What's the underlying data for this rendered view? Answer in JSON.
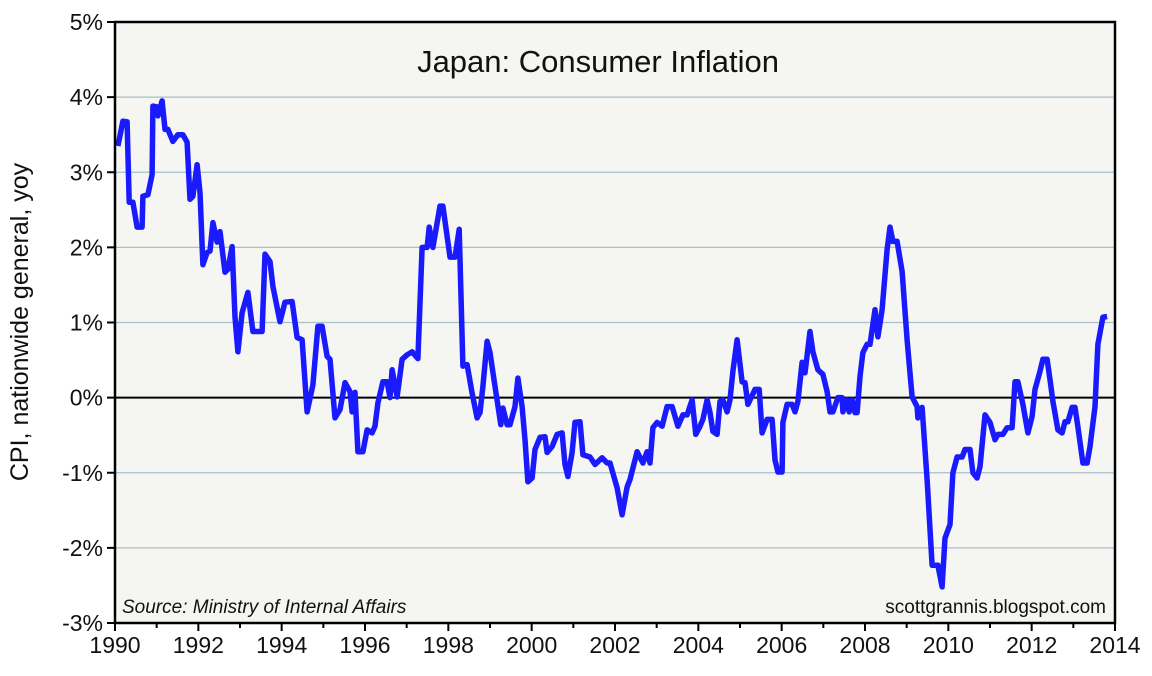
{
  "chart_data": {
    "type": "line",
    "title": "Japan: Consumer Inflation",
    "ylabel": "CPI, nationwide general, yoy",
    "xlabel": "",
    "source": "Source:  Ministry of Internal Affairs",
    "watermark": "scottgrannis.blogspot.com",
    "xlim": [
      1990,
      2014
    ],
    "ylim": [
      -3,
      5
    ],
    "x_ticks": [
      "1990",
      "1992",
      "1994",
      "1996",
      "1998",
      "2000",
      "2002",
      "2004",
      "2006",
      "2008",
      "2010",
      "2012",
      "2014"
    ],
    "y_ticks": [
      "5%",
      "4%",
      "3%",
      "2%",
      "1%",
      "0%",
      "-1%",
      "-2%",
      "-3%"
    ],
    "grid": true,
    "line_color": "#1a1aff",
    "series": [
      {
        "points": [
          [
            1990.07,
            3.35
          ],
          [
            1990.19,
            3.68
          ],
          [
            1990.29,
            3.67
          ],
          [
            1990.34,
            2.6
          ],
          [
            1990.43,
            2.6
          ],
          [
            1990.53,
            2.27
          ],
          [
            1990.65,
            2.27
          ],
          [
            1990.67,
            2.68
          ],
          [
            1990.79,
            2.7
          ],
          [
            1990.89,
            2.97
          ],
          [
            1990.91,
            3.88
          ],
          [
            1991.01,
            3.87
          ],
          [
            1991.03,
            3.75
          ],
          [
            1991.13,
            3.95
          ],
          [
            1991.2,
            3.57
          ],
          [
            1991.27,
            3.57
          ],
          [
            1991.39,
            3.41
          ],
          [
            1991.51,
            3.5
          ],
          [
            1991.63,
            3.5
          ],
          [
            1991.73,
            3.4
          ],
          [
            1991.8,
            2.64
          ],
          [
            1991.87,
            2.68
          ],
          [
            1991.97,
            3.1
          ],
          [
            1992.04,
            2.73
          ],
          [
            1992.11,
            1.77
          ],
          [
            1992.21,
            1.93
          ],
          [
            1992.28,
            1.95
          ],
          [
            1992.35,
            2.33
          ],
          [
            1992.45,
            2.07
          ],
          [
            1992.52,
            2.21
          ],
          [
            1992.64,
            1.67
          ],
          [
            1992.71,
            1.71
          ],
          [
            1992.81,
            2.01
          ],
          [
            1992.88,
            1.07
          ],
          [
            1992.95,
            0.61
          ],
          [
            1993.05,
            1.13
          ],
          [
            1993.19,
            1.4
          ],
          [
            1993.31,
            0.88
          ],
          [
            1993.53,
            0.88
          ],
          [
            1993.6,
            1.91
          ],
          [
            1993.72,
            1.81
          ],
          [
            1993.79,
            1.48
          ],
          [
            1993.96,
            1.01
          ],
          [
            1994.08,
            1.27
          ],
          [
            1994.25,
            1.28
          ],
          [
            1994.37,
            0.8
          ],
          [
            1994.49,
            0.77
          ],
          [
            1994.61,
            -0.19
          ],
          [
            1994.75,
            0.17
          ],
          [
            1994.87,
            0.95
          ],
          [
            1994.97,
            0.95
          ],
          [
            1995.09,
            0.55
          ],
          [
            1995.16,
            0.51
          ],
          [
            1995.28,
            -0.27
          ],
          [
            1995.4,
            -0.16
          ],
          [
            1995.52,
            0.2
          ],
          [
            1995.64,
            0.08
          ],
          [
            1995.69,
            -0.19
          ],
          [
            1995.76,
            0.07
          ],
          [
            1995.83,
            -0.72
          ],
          [
            1995.95,
            -0.72
          ],
          [
            1996.05,
            -0.43
          ],
          [
            1996.17,
            -0.47
          ],
          [
            1996.24,
            -0.38
          ],
          [
            1996.31,
            -0.07
          ],
          [
            1996.43,
            0.21
          ],
          [
            1996.53,
            0.21
          ],
          [
            1996.6,
            0.0
          ],
          [
            1996.65,
            0.37
          ],
          [
            1996.77,
            0.01
          ],
          [
            1996.89,
            0.51
          ],
          [
            1997.01,
            0.57
          ],
          [
            1997.13,
            0.61
          ],
          [
            1997.27,
            0.52
          ],
          [
            1997.37,
            2.0
          ],
          [
            1997.49,
            2.0
          ],
          [
            1997.54,
            2.27
          ],
          [
            1997.63,
            2.0
          ],
          [
            1997.8,
            2.55
          ],
          [
            1997.87,
            2.55
          ],
          [
            1998.04,
            1.87
          ],
          [
            1998.16,
            1.87
          ],
          [
            1998.26,
            2.24
          ],
          [
            1998.35,
            0.42
          ],
          [
            1998.45,
            0.44
          ],
          [
            1998.57,
            0.06
          ],
          [
            1998.69,
            -0.27
          ],
          [
            1998.76,
            -0.2
          ],
          [
            1998.83,
            0.15
          ],
          [
            1998.93,
            0.75
          ],
          [
            1999.0,
            0.6
          ],
          [
            1999.12,
            0.15
          ],
          [
            1999.26,
            -0.36
          ],
          [
            1999.31,
            -0.14
          ],
          [
            1999.41,
            -0.36
          ],
          [
            1999.48,
            -0.36
          ],
          [
            1999.6,
            -0.12
          ],
          [
            1999.67,
            0.26
          ],
          [
            1999.77,
            -0.12
          ],
          [
            1999.84,
            -0.56
          ],
          [
            1999.91,
            -1.12
          ],
          [
            2000.01,
            -1.07
          ],
          [
            2000.08,
            -0.69
          ],
          [
            2000.2,
            -0.53
          ],
          [
            2000.32,
            -0.52
          ],
          [
            2000.37,
            -0.73
          ],
          [
            2000.49,
            -0.65
          ],
          [
            2000.61,
            -0.49
          ],
          [
            2000.73,
            -0.47
          ],
          [
            2000.8,
            -0.89
          ],
          [
            2000.87,
            -1.05
          ],
          [
            2000.97,
            -0.73
          ],
          [
            2001.04,
            -0.33
          ],
          [
            2001.16,
            -0.32
          ],
          [
            2001.23,
            -0.76
          ],
          [
            2001.4,
            -0.79
          ],
          [
            2001.52,
            -0.89
          ],
          [
            2001.69,
            -0.8
          ],
          [
            2001.81,
            -0.87
          ],
          [
            2001.88,
            -0.87
          ],
          [
            2002.05,
            -1.2
          ],
          [
            2002.17,
            -1.56
          ],
          [
            2002.29,
            -1.19
          ],
          [
            2002.36,
            -1.09
          ],
          [
            2002.53,
            -0.72
          ],
          [
            2002.67,
            -0.87
          ],
          [
            2002.77,
            -0.72
          ],
          [
            2002.84,
            -0.87
          ],
          [
            2002.91,
            -0.4
          ],
          [
            2003.01,
            -0.33
          ],
          [
            2003.13,
            -0.38
          ],
          [
            2003.25,
            -0.12
          ],
          [
            2003.37,
            -0.12
          ],
          [
            2003.51,
            -0.38
          ],
          [
            2003.63,
            -0.23
          ],
          [
            2003.73,
            -0.23
          ],
          [
            2003.85,
            -0.03
          ],
          [
            2003.94,
            -0.49
          ],
          [
            2004.04,
            -0.38
          ],
          [
            2004.11,
            -0.29
          ],
          [
            2004.21,
            -0.03
          ],
          [
            2004.28,
            -0.2
          ],
          [
            2004.35,
            -0.45
          ],
          [
            2004.45,
            -0.49
          ],
          [
            2004.52,
            -0.05
          ],
          [
            2004.59,
            -0.03
          ],
          [
            2004.69,
            -0.19
          ],
          [
            2004.76,
            -0.03
          ],
          [
            2004.83,
            0.35
          ],
          [
            2004.93,
            0.77
          ],
          [
            2005.05,
            0.21
          ],
          [
            2005.12,
            0.2
          ],
          [
            2005.19,
            -0.09
          ],
          [
            2005.36,
            0.11
          ],
          [
            2005.46,
            0.11
          ],
          [
            2005.53,
            -0.47
          ],
          [
            2005.65,
            -0.29
          ],
          [
            2005.77,
            -0.29
          ],
          [
            2005.84,
            -0.83
          ],
          [
            2005.91,
            -0.99
          ],
          [
            2006.01,
            -0.99
          ],
          [
            2006.03,
            -0.33
          ],
          [
            2006.13,
            -0.09
          ],
          [
            2006.25,
            -0.09
          ],
          [
            2006.32,
            -0.19
          ],
          [
            2006.39,
            -0.05
          ],
          [
            2006.49,
            0.47
          ],
          [
            2006.56,
            0.33
          ],
          [
            2006.68,
            0.88
          ],
          [
            2006.75,
            0.61
          ],
          [
            2006.87,
            0.37
          ],
          [
            2006.99,
            0.31
          ],
          [
            2007.09,
            0.08
          ],
          [
            2007.16,
            -0.19
          ],
          [
            2007.23,
            -0.19
          ],
          [
            2007.35,
            0.0
          ],
          [
            2007.45,
            0.0
          ],
          [
            2007.47,
            -0.19
          ],
          [
            2007.57,
            -0.03
          ],
          [
            2007.62,
            -0.19
          ],
          [
            2007.69,
            -0.03
          ],
          [
            2007.76,
            -0.2
          ],
          [
            2007.81,
            -0.2
          ],
          [
            2007.88,
            0.28
          ],
          [
            2007.95,
            0.6
          ],
          [
            2008.05,
            0.71
          ],
          [
            2008.12,
            0.71
          ],
          [
            2008.24,
            1.17
          ],
          [
            2008.31,
            0.81
          ],
          [
            2008.41,
            1.17
          ],
          [
            2008.53,
            1.97
          ],
          [
            2008.6,
            2.27
          ],
          [
            2008.67,
            2.08
          ],
          [
            2008.77,
            2.08
          ],
          [
            2008.89,
            1.68
          ],
          [
            2009.01,
            0.77
          ],
          [
            2009.13,
            0.01
          ],
          [
            2009.25,
            -0.12
          ],
          [
            2009.27,
            -0.27
          ],
          [
            2009.37,
            -0.13
          ],
          [
            2009.49,
            -1.09
          ],
          [
            2009.61,
            -2.23
          ],
          [
            2009.75,
            -2.23
          ],
          [
            2009.85,
            -2.52
          ],
          [
            2009.92,
            -1.87
          ],
          [
            2010.04,
            -1.69
          ],
          [
            2010.11,
            -1.0
          ],
          [
            2010.21,
            -0.79
          ],
          [
            2010.33,
            -0.79
          ],
          [
            2010.4,
            -0.69
          ],
          [
            2010.52,
            -0.69
          ],
          [
            2010.59,
            -1.0
          ],
          [
            2010.69,
            -1.07
          ],
          [
            2010.76,
            -0.92
          ],
          [
            2010.88,
            -0.23
          ],
          [
            2011.0,
            -0.33
          ],
          [
            2011.12,
            -0.56
          ],
          [
            2011.19,
            -0.49
          ],
          [
            2011.31,
            -0.49
          ],
          [
            2011.41,
            -0.4
          ],
          [
            2011.53,
            -0.4
          ],
          [
            2011.6,
            0.21
          ],
          [
            2011.67,
            0.21
          ],
          [
            2011.79,
            -0.09
          ],
          [
            2011.91,
            -0.47
          ],
          [
            2012.01,
            -0.25
          ],
          [
            2012.08,
            0.11
          ],
          [
            2012.2,
            0.35
          ],
          [
            2012.27,
            0.51
          ],
          [
            2012.37,
            0.51
          ],
          [
            2012.44,
            0.24
          ],
          [
            2012.51,
            -0.05
          ],
          [
            2012.63,
            -0.43
          ],
          [
            2012.73,
            -0.47
          ],
          [
            2012.8,
            -0.32
          ],
          [
            2012.87,
            -0.32
          ],
          [
            2012.97,
            -0.13
          ],
          [
            2013.04,
            -0.13
          ],
          [
            2013.11,
            -0.39
          ],
          [
            2013.23,
            -0.87
          ],
          [
            2013.33,
            -0.87
          ],
          [
            2013.4,
            -0.65
          ],
          [
            2013.52,
            -0.12
          ],
          [
            2013.59,
            0.71
          ],
          [
            2013.71,
            1.07
          ],
          [
            2013.81,
            1.08
          ]
        ]
      }
    ]
  }
}
